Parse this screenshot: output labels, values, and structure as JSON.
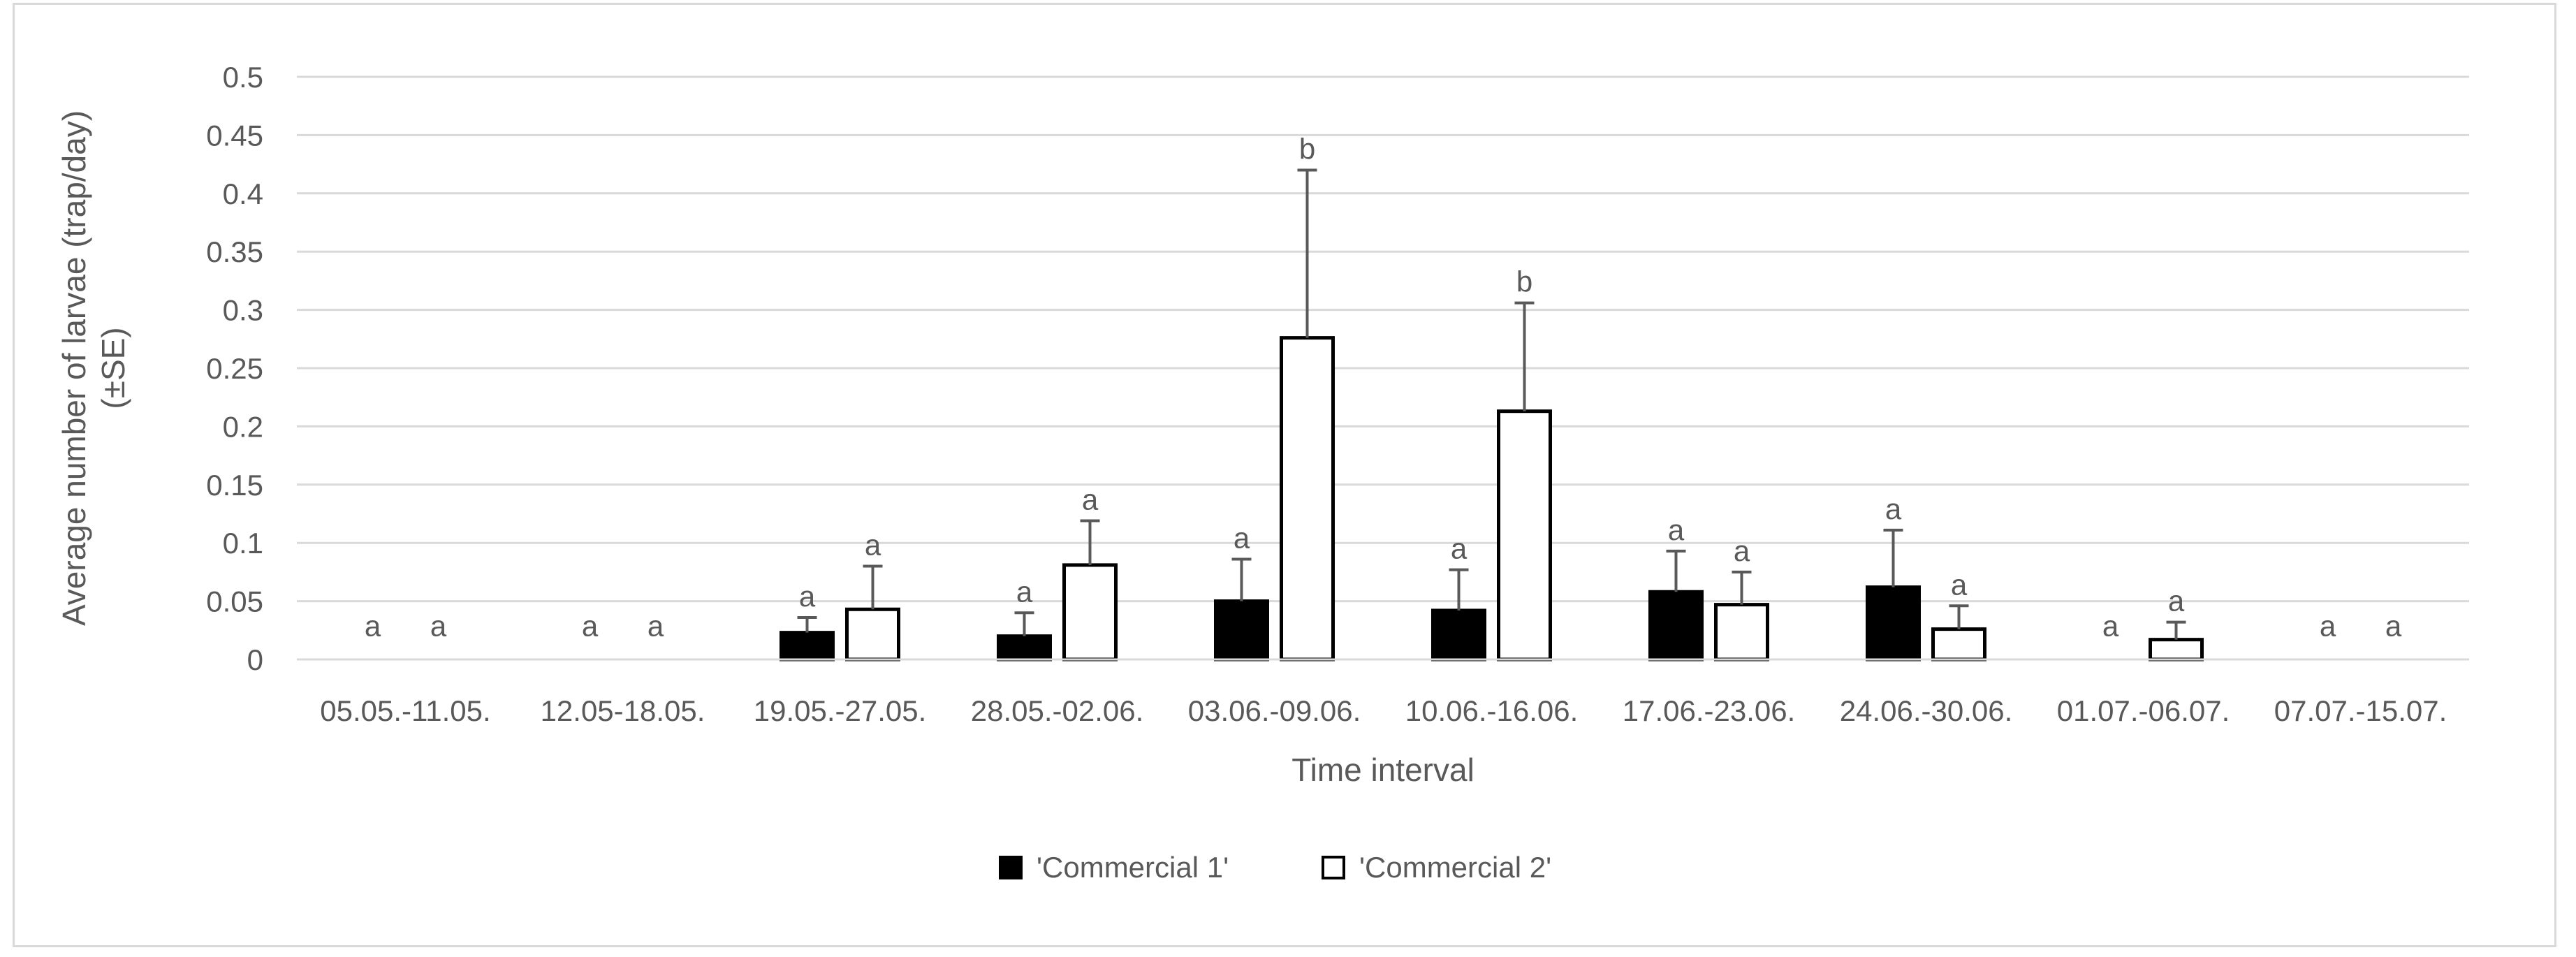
{
  "chart_data": {
    "type": "bar",
    "title": "",
    "xlabel": "Time interval",
    "ylabel_lines": [
      "Average number of larvae (trap/day)",
      "(±SE)"
    ],
    "ylim": [
      0,
      0.5
    ],
    "yticks": [
      "0",
      "0.05",
      "0.1",
      "0.15",
      "0.2",
      "0.25",
      "0.3",
      "0.35",
      "0.4",
      "0.45",
      "0.5"
    ],
    "ytick_values": [
      0,
      0.05,
      0.1,
      0.15,
      0.2,
      0.25,
      0.3,
      0.35,
      0.4,
      0.45,
      0.5
    ],
    "grid": true,
    "legend_position": "bottom",
    "categories": [
      "05.05.-11.05.",
      "12.05-18.05.",
      "19.05.-27.05.",
      "28.05.-02.06.",
      "03.06.-09.06.",
      "10.06.-16.06.",
      "17.06.-23.06.",
      "24.06.-30.06.",
      "01.07.-06.07.",
      "07.07.-15.07."
    ],
    "series": [
      {
        "name": "'Commercial 1'",
        "fill": "#000000",
        "values": [
          0,
          0,
          0.023,
          0.02,
          0.05,
          0.042,
          0.058,
          0.062,
          0,
          0
        ],
        "errors": [
          0,
          0,
          0.013,
          0.02,
          0.036,
          0.035,
          0.035,
          0.049,
          0,
          0
        ],
        "labels": [
          "a",
          "a",
          "a",
          "a",
          "a",
          "a",
          "a",
          "a",
          "a",
          "a"
        ]
      },
      {
        "name": "'Commercial 2'",
        "fill": "#ffffff",
        "values": [
          0,
          0,
          0.043,
          0.081,
          0.276,
          0.213,
          0.047,
          0.026,
          0.017,
          0
        ],
        "errors": [
          0,
          0,
          0.037,
          0.038,
          0.144,
          0.093,
          0.028,
          0.02,
          0.015,
          0
        ],
        "labels": [
          "a",
          "a",
          "a",
          "a",
          "b",
          "b",
          "a",
          "a",
          "a",
          "a"
        ]
      }
    ]
  }
}
